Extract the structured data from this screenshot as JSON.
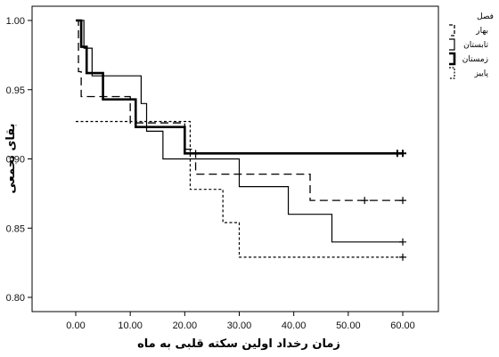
{
  "chart_data": {
    "type": "line",
    "step": true,
    "xlabel": "زمان رخداد اولین سکته قلبی به ماه",
    "ylabel": "بقای تجمعی",
    "xlim": [
      -5,
      65
    ],
    "ylim": [
      0.78,
      1.01
    ],
    "xticks": [
      0,
      10,
      20,
      30,
      40,
      50,
      60
    ],
    "xtick_labels": [
      "0.00",
      "10.00",
      "20.00",
      "30.00",
      "40.00",
      "50.00",
      "60.00"
    ],
    "yticks": [
      0.8,
      0.85,
      0.9,
      0.95,
      1.0
    ],
    "ytick_labels": [
      "0.80",
      "0.85",
      "0.90",
      "0.95",
      "1.00"
    ],
    "legend": {
      "title": "فصل",
      "placement": "right"
    },
    "series": [
      {
        "name": "بهار",
        "style": "long-dash",
        "steps": [
          [
            0,
            1.0
          ],
          [
            0.5,
            0.963
          ],
          [
            1.0,
            0.945
          ],
          [
            10.0,
            0.926
          ],
          [
            20.0,
            0.907
          ],
          [
            22.0,
            0.889
          ],
          [
            43.0,
            0.87
          ],
          [
            60.0,
            0.87
          ]
        ],
        "censored_x": [
          53,
          60
        ]
      },
      {
        "name": "تابستان",
        "style": "thin-solid",
        "steps": [
          [
            0,
            1.0
          ],
          [
            1.5,
            0.98
          ],
          [
            3.0,
            0.96
          ],
          [
            12.0,
            0.94
          ],
          [
            13.0,
            0.92
          ],
          [
            16.0,
            0.9
          ],
          [
            30.0,
            0.88
          ],
          [
            39.0,
            0.86
          ],
          [
            47.0,
            0.84
          ],
          [
            60.0,
            0.84
          ]
        ],
        "censored_x": [
          60
        ]
      },
      {
        "name": "زمستان",
        "style": "thick-solid",
        "steps": [
          [
            0,
            1.0
          ],
          [
            1.0,
            0.981
          ],
          [
            2.0,
            0.962
          ],
          [
            5.0,
            0.943
          ],
          [
            11.0,
            0.923
          ],
          [
            20.0,
            0.904
          ],
          [
            60.0,
            0.904
          ]
        ],
        "censored_x": [
          59,
          60
        ]
      },
      {
        "name": "پاییز",
        "style": "short-dash",
        "steps": [
          [
            0,
            0.927
          ],
          [
            15.0,
            0.927
          ],
          [
            21.0,
            0.878
          ],
          [
            27.0,
            0.854
          ],
          [
            30.0,
            0.829
          ],
          [
            60.0,
            0.829
          ]
        ],
        "censored_x": [
          60
        ]
      }
    ]
  }
}
